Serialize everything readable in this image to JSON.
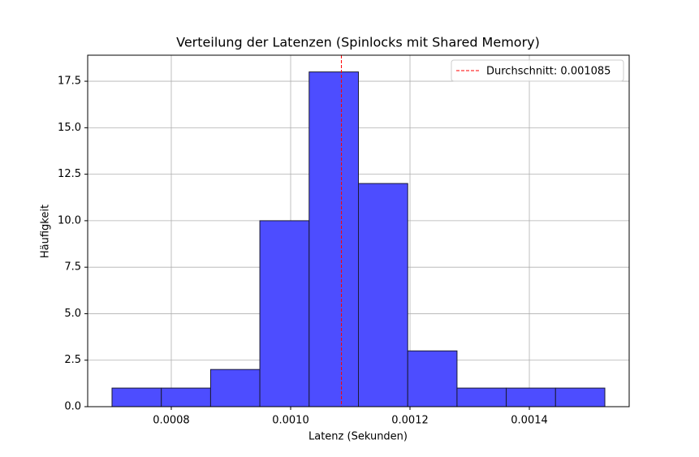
{
  "chart_data": {
    "type": "histogram",
    "title": "Verteilung der Latenzen (Spinlocks mit Shared Memory)",
    "xlabel": "Latenz (Sekunden)",
    "ylabel": "Häufigkeit",
    "bins": [
      0.0007007,
      0.0007833,
      0.0008659,
      0.0009484,
      0.001031,
      0.0011136,
      0.0011962,
      0.0012788,
      0.0013613,
      0.0014439,
      0.0015265
    ],
    "values": [
      1,
      1,
      2,
      10,
      18,
      12,
      3,
      1,
      1,
      1
    ],
    "color": "#4d4dff",
    "edgecolor": "#1a1a33",
    "mean": {
      "name": "Durchschnitt: 0.001085",
      "value": 0.001085,
      "color": "#ff0000"
    },
    "xlim": [
      0.0006599,
      0.0015673
    ],
    "xticks": [
      0.0008,
      {
        "value": 0.001,
        "label": "0.0010"
      },
      0.0012,
      0.0014
    ],
    "ylim": [
      0,
      18.9
    ],
    "yticks": [
      {
        "value": 0,
        "label": "0.0"
      },
      {
        "value": 2.5,
        "label": "2.5"
      },
      {
        "value": 5,
        "label": "5.0"
      },
      {
        "value": 7.5,
        "label": "7.5"
      },
      {
        "value": 10,
        "label": "10.0"
      },
      {
        "value": 12.5,
        "label": "12.5"
      },
      {
        "value": 15,
        "label": "15.0"
      },
      {
        "value": 17.5,
        "label": "17.5"
      }
    ],
    "grid": true,
    "legend": "upper right"
  }
}
